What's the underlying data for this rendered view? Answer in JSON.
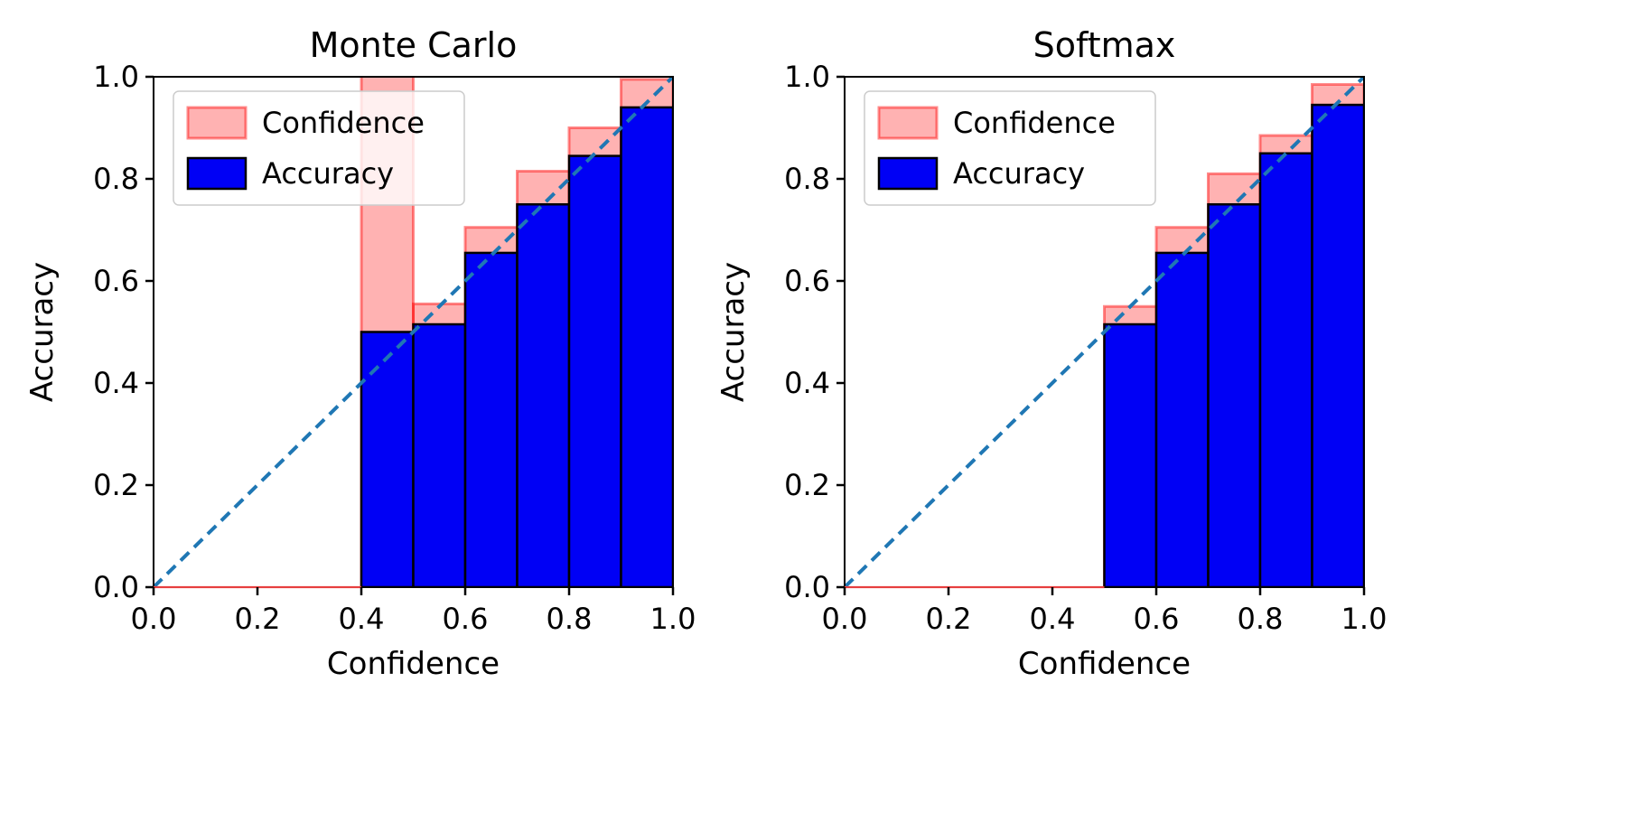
{
  "figure": {
    "background": "#ffffff",
    "colors": {
      "confidence_fill": "rgba(255,0,0,0.30)",
      "confidence_edge": "rgba(255,0,0,0.45)",
      "accuracy_fill": "#0000f5",
      "accuracy_edge": "#000000",
      "diagonal": "#1f77b4",
      "spine": "#000000",
      "text": "#000000",
      "legend_bg": "rgba(255,255,255,0.8)",
      "legend_border": "#cccccc",
      "baseline_tint": "rgba(255,70,70,0.9)"
    }
  },
  "chart_data": [
    {
      "type": "bar",
      "title": "Monte Carlo",
      "xlabel": "Confidence",
      "ylabel": "Accuracy",
      "xlim": [
        0.0,
        1.0
      ],
      "ylim": [
        0.0,
        1.0
      ],
      "xtick_labels": [
        "0.0",
        "0.2",
        "0.4",
        "0.6",
        "0.8",
        "1.0"
      ],
      "ytick_labels": [
        "0.0",
        "0.2",
        "0.4",
        "0.6",
        "0.8",
        "1.0"
      ],
      "grid": false,
      "diagonal_line": {
        "from": [
          0,
          0
        ],
        "to": [
          1,
          1
        ],
        "style": "dashed"
      },
      "legend": {
        "position": "upper-left",
        "entries": [
          "Confidence",
          "Accuracy"
        ]
      },
      "bin_edges": [
        0.0,
        0.1,
        0.2,
        0.3,
        0.4,
        0.5,
        0.6,
        0.7,
        0.8,
        0.9,
        1.0
      ],
      "series": [
        {
          "name": "Confidence",
          "values": [
            0,
            0,
            0,
            0,
            1.05,
            0.555,
            0.705,
            0.815,
            0.9,
            0.995
          ]
        },
        {
          "name": "Accuracy",
          "values": [
            0,
            0,
            0,
            0,
            0.5,
            0.515,
            0.655,
            0.75,
            0.845,
            0.94
          ]
        }
      ],
      "note": "Confidence bar for bin 0.4-0.5 extends above the axis top and is clipped at 1.0"
    },
    {
      "type": "bar",
      "title": "Softmax",
      "xlabel": "Confidence",
      "ylabel": "Accuracy",
      "xlim": [
        0.0,
        1.0
      ],
      "ylim": [
        0.0,
        1.0
      ],
      "xtick_labels": [
        "0.0",
        "0.2",
        "0.4",
        "0.6",
        "0.8",
        "1.0"
      ],
      "ytick_labels": [
        "0.0",
        "0.2",
        "0.4",
        "0.6",
        "0.8",
        "1.0"
      ],
      "grid": false,
      "diagonal_line": {
        "from": [
          0,
          0
        ],
        "to": [
          1,
          1
        ],
        "style": "dashed"
      },
      "legend": {
        "position": "upper-left",
        "entries": [
          "Confidence",
          "Accuracy"
        ]
      },
      "bin_edges": [
        0.0,
        0.1,
        0.2,
        0.3,
        0.4,
        0.5,
        0.6,
        0.7,
        0.8,
        0.9,
        1.0
      ],
      "series": [
        {
          "name": "Confidence",
          "values": [
            0,
            0,
            0,
            0,
            0,
            0.55,
            0.705,
            0.81,
            0.885,
            0.985
          ]
        },
        {
          "name": "Accuracy",
          "values": [
            0,
            0,
            0,
            0,
            0,
            0.515,
            0.655,
            0.75,
            0.85,
            0.945
          ]
        }
      ]
    }
  ]
}
